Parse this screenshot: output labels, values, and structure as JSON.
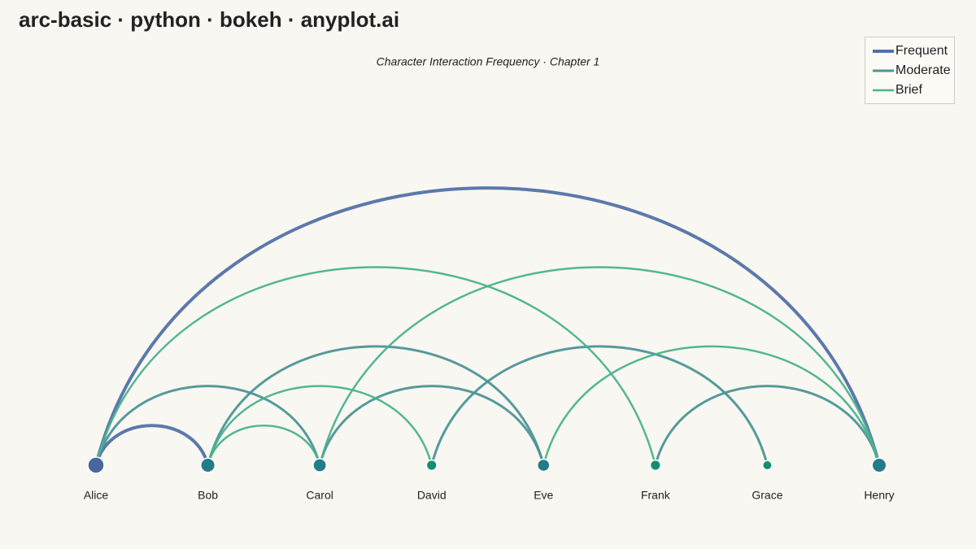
{
  "chart_data": {
    "type": "arc",
    "title": "arc-basic · python · bokeh · anyplot.ai",
    "subtitle": "Character Interaction Frequency · Chapter 1",
    "nodes": [
      "Alice",
      "Bob",
      "Carol",
      "David",
      "Eve",
      "Frank",
      "Grace",
      "Henry"
    ],
    "strengths": [
      {
        "name": "Frequent",
        "color": "#5272a6"
      },
      {
        "name": "Moderate",
        "color": "#4c9597"
      },
      {
        "name": "Brief",
        "color": "#4ab28f"
      }
    ],
    "edges": [
      {
        "source": "Alice",
        "target": "Henry",
        "strength": "Frequent"
      },
      {
        "source": "Alice",
        "target": "Bob",
        "strength": "Frequent"
      },
      {
        "source": "Alice",
        "target": "Carol",
        "strength": "Moderate"
      },
      {
        "source": "Bob",
        "target": "Eve",
        "strength": "Moderate"
      },
      {
        "source": "Carol",
        "target": "Eve",
        "strength": "Moderate"
      },
      {
        "source": "David",
        "target": "Grace",
        "strength": "Moderate"
      },
      {
        "source": "Frank",
        "target": "Henry",
        "strength": "Moderate"
      },
      {
        "source": "Alice",
        "target": "Frank",
        "strength": "Brief"
      },
      {
        "source": "Carol",
        "target": "Henry",
        "strength": "Brief"
      },
      {
        "source": "Eve",
        "target": "Henry",
        "strength": "Brief"
      },
      {
        "source": "Bob",
        "target": "David",
        "strength": "Brief"
      },
      {
        "source": "Bob",
        "target": "Carol",
        "strength": "Brief"
      }
    ],
    "legend": "top-right"
  }
}
